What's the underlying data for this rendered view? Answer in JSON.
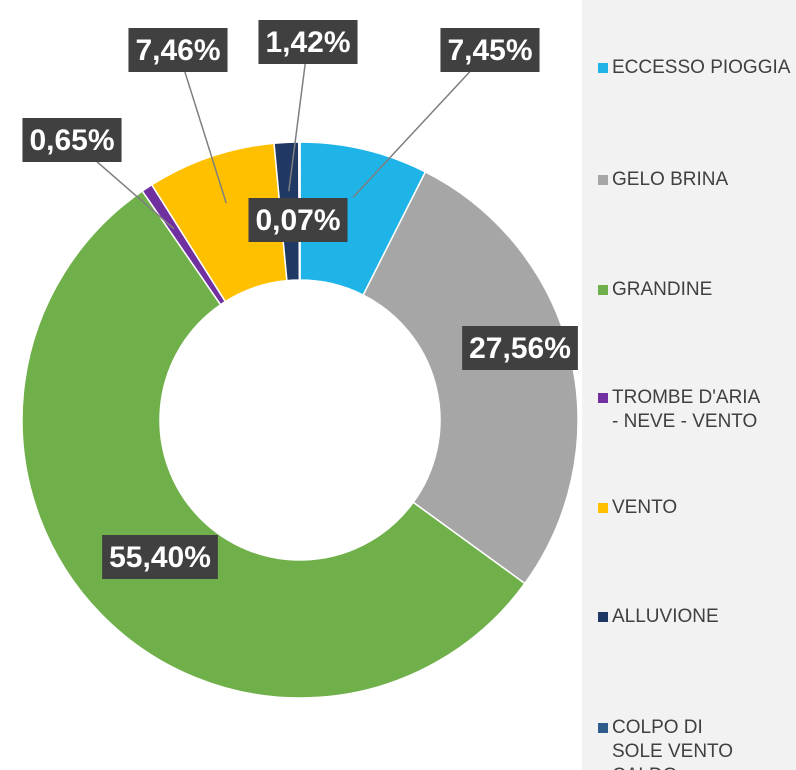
{
  "chart_data": {
    "type": "donut",
    "categories": [
      "ECCESSO PIOGGIA",
      "GELO BRINA",
      "GRANDINE",
      "TROMBE D'ARIA - NEVE - VENTO",
      "VENTO",
      "ALLUVIONE",
      "COLPO DI SOLE VENTO CALDO"
    ],
    "values": [
      7.45,
      27.56,
      55.4,
      0.65,
      7.46,
      1.42,
      0.07
    ],
    "value_labels": [
      "7,45%",
      "27,56%",
      "55,40%",
      "0,65%",
      "7,46%",
      "1,42%",
      "0,07%"
    ],
    "colors": [
      "#1fb4e8",
      "#a6a6a6",
      "#70b04a",
      "#7030a0",
      "#ffc000",
      "#1f3864",
      "#2e5d8c"
    ],
    "legend": "right"
  }
}
